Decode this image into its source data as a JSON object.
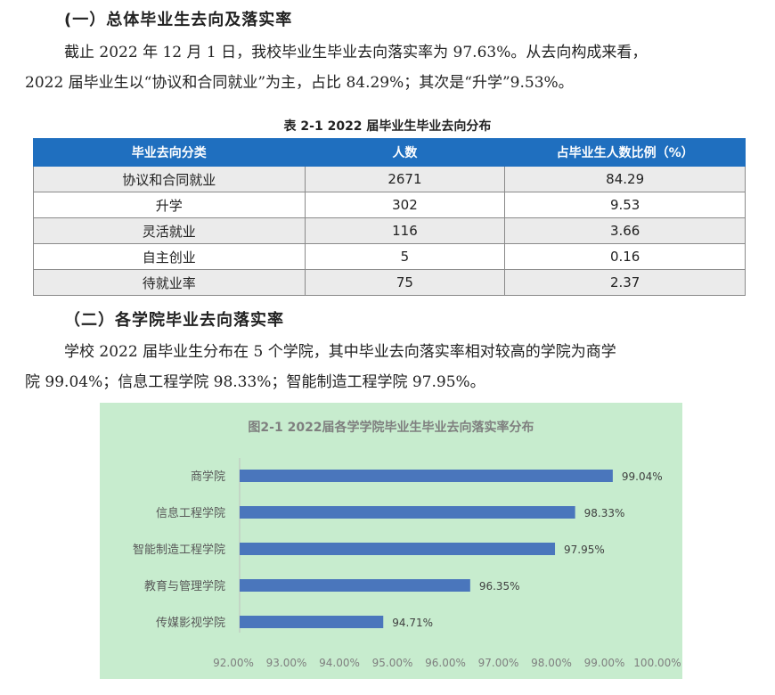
{
  "section1": {
    "heading": "(一）总体毕业生去向及落实率",
    "line1": "截止 2022 年 12 月 1 日，我校毕业生毕业去向落实率为 97.63%。从去向构成来看，",
    "line2": "2022 届毕业生以“协议和合同就业”为主，占比 84.29%；其次是“升学”9.53%。"
  },
  "table": {
    "caption": "表 2-1 2022 届毕业生毕业去向分布",
    "headers": [
      "毕业去向分类",
      "人数",
      "占毕业生人数比例（%）"
    ],
    "rows": [
      [
        "协议和合同就业",
        "2671",
        "84.29"
      ],
      [
        "升学",
        "302",
        "9.53"
      ],
      [
        "灵活就业",
        "116",
        "3.66"
      ],
      [
        "自主创业",
        "5",
        "0.16"
      ],
      [
        "待就业率",
        "75",
        "2.37"
      ]
    ]
  },
  "section2": {
    "heading": "（二）各学院毕业去向落实率",
    "line1": "学校 2022 届毕业生分布在 5 个学院，其中毕业去向落实率相对较高的学院为商学",
    "line2": "院 99.04%；信息工程学院 98.33%；智能制造工程学院 97.95%。"
  },
  "colors": {
    "header_blue": "#1f6fbf",
    "bar_blue": "#4a76bc",
    "chart_bg": "#c7ecce",
    "title_gray": "#7f7f7f"
  },
  "chart_data": {
    "type": "bar",
    "orientation": "horizontal",
    "title": "图2-1 2022届各学学院毕业生毕业去向落实率分布",
    "categories": [
      "商学院",
      "信息工程学院",
      "智能制造工程学院",
      "教育与管理学院",
      "传媒影视学院"
    ],
    "values": [
      99.04,
      98.33,
      97.95,
      96.35,
      94.71
    ],
    "value_labels": [
      "99.04%",
      "98.33%",
      "97.95%",
      "96.35%",
      "94.71%"
    ],
    "xlim": [
      92,
      100
    ],
    "xticks": [
      "92.00%",
      "93.00%",
      "94.00%",
      "95.00%",
      "96.00%",
      "97.00%",
      "98.00%",
      "99.00%",
      "100.00%"
    ],
    "grid": false,
    "legend": "none"
  }
}
